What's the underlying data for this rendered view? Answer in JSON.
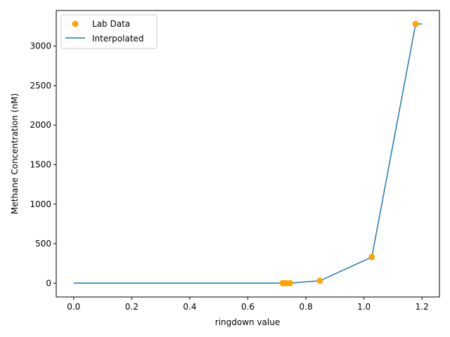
{
  "chart_data": {
    "type": "scatter",
    "xlabel": "ringdown value",
    "ylabel": "Methane Concentration (nM)",
    "xlim": [
      -0.06,
      1.26
    ],
    "ylim": [
      -175,
      3450
    ],
    "x_ticks": [
      0.0,
      0.2,
      0.4,
      0.6,
      0.8,
      1.0,
      1.2
    ],
    "x_tick_labels": [
      "0.0",
      "0.2",
      "0.4",
      "0.6",
      "0.8",
      "1.0",
      "1.2"
    ],
    "y_ticks": [
      0,
      500,
      1000,
      1500,
      2000,
      2500,
      3000
    ],
    "y_tick_labels": [
      "0",
      "500",
      "1000",
      "1500",
      "2000",
      "2500",
      "3000"
    ],
    "grid": false,
    "legend_position": "top-left",
    "series": [
      {
        "name": "Lab Data",
        "kind": "scatter",
        "color": "#ffa500",
        "x": [
          0.72,
          0.73,
          0.745,
          0.848,
          1.027,
          1.178
        ],
        "y": [
          0,
          0,
          0,
          30,
          330,
          3280
        ]
      },
      {
        "name": "Interpolated",
        "kind": "line",
        "color": "#1f77b4",
        "x": [
          0.0,
          0.72,
          0.73,
          0.745,
          0.848,
          1.027,
          1.178,
          1.2
        ],
        "y": [
          0,
          0,
          0,
          0,
          30,
          330,
          3280,
          3280
        ]
      }
    ]
  }
}
